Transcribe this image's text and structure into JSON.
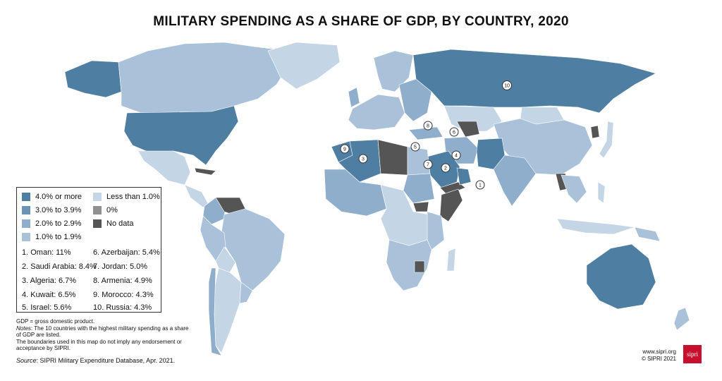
{
  "title": "MILITARY SPENDING AS A SHARE OF GDP, BY COUNTRY, 2020",
  "colors": {
    "c4plus": "#4f7ea3",
    "c3": "#6b93b6",
    "c2": "#8eaecb",
    "c1": "#a9c2d9",
    "lt1": "#c4d5e6",
    "zero": "#909090",
    "nodata": "#555555",
    "brand": "#c8102e"
  },
  "legend": {
    "items": [
      {
        "label": "4.0% or more",
        "color": "#4f7ea3"
      },
      {
        "label": "3.0% to 3.9%",
        "color": "#6b93b6"
      },
      {
        "label": "2.0% to 2.9%",
        "color": "#8eaecb"
      },
      {
        "label": "1.0% to 1.9%",
        "color": "#a9c2d9"
      },
      {
        "label": "Less than 1.0%",
        "color": "#c4d5e6"
      },
      {
        "label": "0%",
        "color": "#909090"
      },
      {
        "label": "No data",
        "color": "#555555"
      }
    ],
    "top10": [
      "1. Oman: 11%",
      "2. Saudi Arabia: 8.4%",
      "3. Algeria: 6.7%",
      "4. Kuwait: 6.5%",
      "5. Israel: 5.6%",
      "6. Azerbaijan: 5.4%",
      "7. Jordan: 5.0%",
      "8. Armenia: 4.9%",
      "9. Morocco: 4.3%",
      "10. Russia: 4.3%"
    ]
  },
  "markers": [
    "1",
    "2",
    "3",
    "4",
    "5",
    "6",
    "7",
    "8",
    "9",
    "10"
  ],
  "notes": {
    "gdp": "GDP = gross domestic product.",
    "notes_label": "Notes",
    "notes_text": ": The 10 countries with the highest military spending as a share of GDP are listed.",
    "boundaries": "The boundaries used in this map do not imply any endorsement or acceptance by SIPRI.",
    "source_label": "Source",
    "source_text": ": SIPRI Military Expenditure Database, Apr. 2021."
  },
  "credit": {
    "url": "www.sipri.org",
    "copyright": "© SIPRI 2021",
    "logo": "sipri"
  }
}
